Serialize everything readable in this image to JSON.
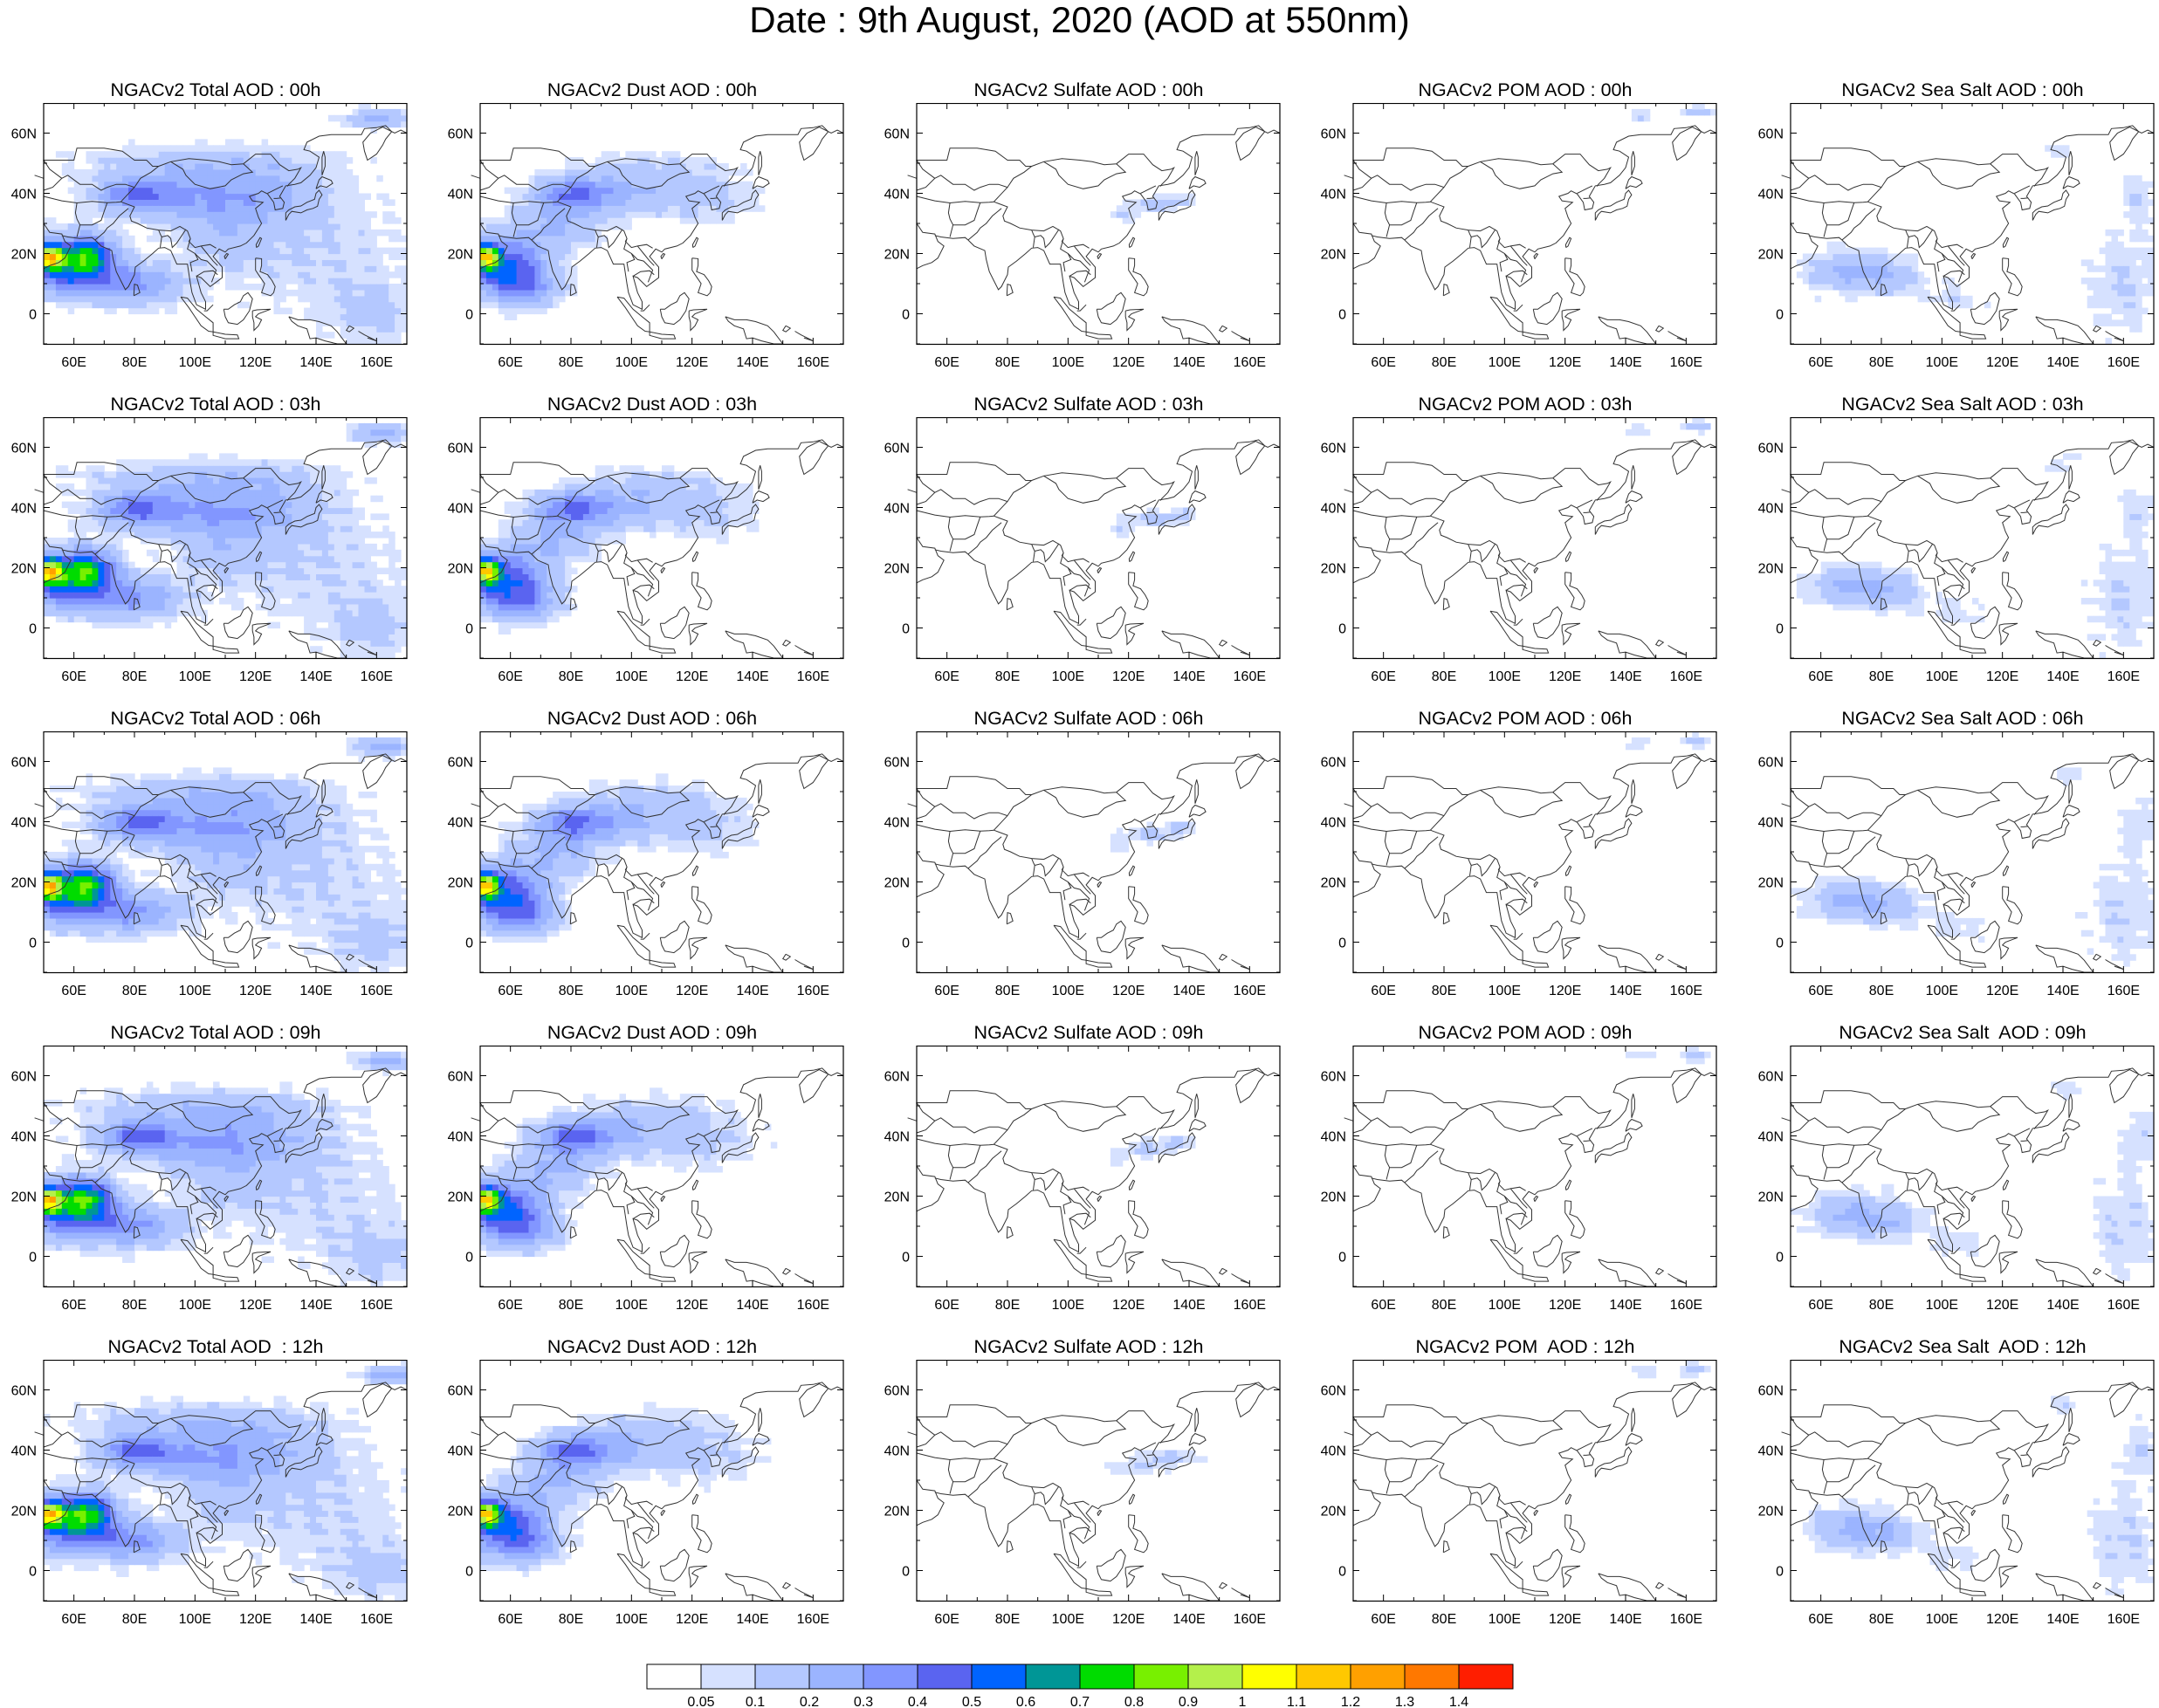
{
  "title": "Date : 9th August, 2020 (AOD at 550nm)",
  "chart_data": {
    "type": "heatmap",
    "figure_type": "map-panels",
    "layout": "5 rows x 5 columns",
    "grid": false,
    "map": {
      "lon_range": [
        50,
        170
      ],
      "lat_range": [
        -10,
        70
      ],
      "x_ticks": [
        60,
        80,
        100,
        120,
        140,
        160
      ],
      "x_tick_labels": [
        "60E",
        "80E",
        "100E",
        "120E",
        "140E",
        "160E"
      ],
      "y_ticks": [
        60,
        40,
        20,
        0
      ],
      "y_tick_labels": [
        "60N",
        "40N",
        "20N",
        "0"
      ]
    },
    "panels": [
      {
        "title": "NGACv2 Total AOD : 00h",
        "species": "total"
      },
      {
        "title": "NGACv2 Dust AOD : 00h",
        "species": "dust"
      },
      {
        "title": "NGACv2 Sulfate AOD : 00h",
        "species": "sulfate"
      },
      {
        "title": "NGACv2 POM AOD : 00h",
        "species": "pom"
      },
      {
        "title": "NGACv2 Sea Salt AOD : 00h",
        "species": "seasalt"
      },
      {
        "title": "NGACv2 Total AOD : 03h",
        "species": "total"
      },
      {
        "title": "NGACv2 Dust AOD : 03h",
        "species": "dust"
      },
      {
        "title": "NGACv2 Sulfate AOD : 03h",
        "species": "sulfate"
      },
      {
        "title": "NGACv2 POM AOD : 03h",
        "species": "pom"
      },
      {
        "title": "NGACv2 Sea Salt AOD : 03h",
        "species": "seasalt"
      },
      {
        "title": "NGACv2 Total AOD : 06h",
        "species": "total"
      },
      {
        "title": "NGACv2 Dust AOD : 06h",
        "species": "dust"
      },
      {
        "title": "NGACv2 Sulfate AOD : 06h",
        "species": "sulfate"
      },
      {
        "title": "NGACv2 POM AOD : 06h",
        "species": "pom"
      },
      {
        "title": "NGACv2 Sea Salt AOD : 06h",
        "species": "seasalt"
      },
      {
        "title": "NGACv2 Total AOD : 09h",
        "species": "total"
      },
      {
        "title": "NGACv2 Dust AOD : 09h",
        "species": "dust"
      },
      {
        "title": "NGACv2 Sulfate AOD : 09h",
        "species": "sulfate"
      },
      {
        "title": "NGACv2 POM AOD : 09h",
        "species": "pom"
      },
      {
        "title": "NGACv2 Sea Salt  AOD : 09h",
        "species": "seasalt"
      },
      {
        "title": "NGACv2 Total AOD  : 12h",
        "species": "total"
      },
      {
        "title": "NGACv2 Dust AOD : 12h",
        "species": "dust"
      },
      {
        "title": "NGACv2 Sulfate AOD : 12h",
        "species": "sulfate"
      },
      {
        "title": "NGACv2 POM  AOD : 12h",
        "species": "pom"
      },
      {
        "title": "NGACv2 Sea Salt  AOD : 12h",
        "species": "seasalt"
      }
    ],
    "colorbar": {
      "levels": [
        "0.05",
        "0.1",
        "0.2",
        "0.3",
        "0.4",
        "0.5",
        "0.6",
        "0.7",
        "0.8",
        "0.9",
        "1",
        "1.1",
        "1.2",
        "1.3",
        "1.4"
      ],
      "colors": [
        "#ffffff",
        "#d6e1ff",
        "#b4c8ff",
        "#9bb4ff",
        "#8296ff",
        "#5a64f0",
        "#0064ff",
        "#009696",
        "#00dc00",
        "#78f000",
        "#b4f04b",
        "#ffff00",
        "#ffc800",
        "#ffa000",
        "#ff7800",
        "#ff1e00"
      ]
    }
  }
}
